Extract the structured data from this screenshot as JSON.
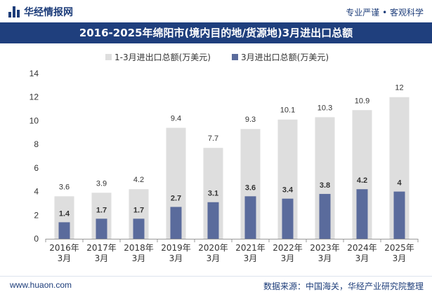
{
  "header": {
    "brand_name": "华经情报网",
    "slogan": "专业严谨 • 客观科学"
  },
  "footer": {
    "website": "www.huaon.com",
    "source": "数据来源：中国海关，华经产业研究院整理"
  },
  "colors": {
    "title_bg": "#1f3f7d",
    "series_total": "#dedede",
    "series_march": "#5a6b9c",
    "brand": "#1d3d7a"
  },
  "chart_data": {
    "type": "bar",
    "title": "2016-2025年绵阳市(境内目的地/货源地)3月进出口总额",
    "categories": [
      [
        "2016年",
        "3月"
      ],
      [
        "2017年",
        "3月"
      ],
      [
        "2018年",
        "3月"
      ],
      [
        "2019年",
        "3月"
      ],
      [
        "2020年",
        "3月"
      ],
      [
        "2021年",
        "3月"
      ],
      [
        "2022年",
        "3月"
      ],
      [
        "2023年",
        "3月"
      ],
      [
        "2024年",
        "3月"
      ],
      [
        "2025年",
        "3月"
      ]
    ],
    "series": [
      {
        "name": "1-3月进出口总额(万美元)",
        "values": [
          3.6,
          3.9,
          4.2,
          9.4,
          7.7,
          9.3,
          10.1,
          10.3,
          10.9,
          12
        ],
        "color": "#dedede"
      },
      {
        "name": "3月进出口总额(万美元)",
        "values": [
          1.4,
          1.7,
          1.7,
          2.7,
          3.1,
          3.6,
          3.4,
          3.8,
          4.2,
          4
        ],
        "color": "#5a6b9c"
      }
    ],
    "data_labels": [
      [
        "3.6",
        "3.9",
        "4.2",
        "9.4",
        "7.7",
        "9.3",
        "10.1",
        "10.3",
        "10.9",
        "12"
      ],
      [
        "1.4",
        "1.7",
        "1.7",
        "2.7",
        "3.1",
        "3.6",
        "3.4",
        "3.8",
        "4.2",
        "4"
      ]
    ],
    "ylim": [
      0,
      14
    ],
    "yticks": [
      0,
      2,
      4,
      6,
      8,
      10,
      12,
      14
    ],
    "ytick_labels": [
      "0",
      "2",
      "4",
      "6",
      "8",
      "10",
      "12",
      "14"
    ],
    "legend_position": "top",
    "grid": false
  }
}
